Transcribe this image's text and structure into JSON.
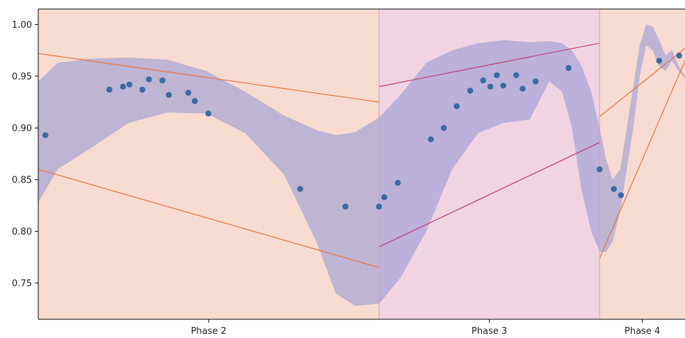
{
  "chart_data": {
    "type": "scatter",
    "title": "",
    "xlabel": "",
    "ylabel": "",
    "ylim": [
      0.715,
      1.015
    ],
    "xlim": [
      0,
      100
    ],
    "y_ticks": [
      0.75,
      0.8,
      0.85,
      0.9,
      0.95,
      1.0
    ],
    "y_tick_labels": [
      "0.75",
      "0.80",
      "0.85",
      "0.90",
      "0.95",
      "1.00"
    ],
    "grid": false,
    "legend": "none",
    "phases": [
      {
        "label": "Phase 2",
        "x_start": 0,
        "x_end": 52.7,
        "color": "#f7dbd1"
      },
      {
        "label": "Phase 3",
        "x_start": 52.7,
        "x_end": 86.8,
        "color": "#f0d4e2"
      },
      {
        "label": "Phase 4",
        "x_start": 86.8,
        "x_end": 100,
        "color": "#f7dbd1"
      }
    ],
    "band": {
      "color": "#8f93d6",
      "x": [
        0,
        3,
        8,
        14,
        20,
        26,
        32,
        38,
        43,
        46,
        49,
        52.7,
        56,
        60,
        64,
        68,
        72,
        76,
        79,
        81,
        82.5,
        84,
        85.5,
        86.8,
        87.8,
        88.8,
        90,
        91,
        92,
        93,
        94,
        95,
        96,
        97,
        98,
        99,
        100
      ],
      "upper": [
        0.945,
        0.963,
        0.967,
        0.968,
        0.966,
        0.955,
        0.935,
        0.912,
        0.898,
        0.893,
        0.896,
        0.91,
        0.932,
        0.963,
        0.975,
        0.982,
        0.985,
        0.983,
        0.984,
        0.982,
        0.975,
        0.96,
        0.935,
        0.9,
        0.87,
        0.85,
        0.86,
        0.9,
        0.94,
        0.98,
        1.0,
        0.998,
        0.985,
        0.97,
        0.975,
        0.96,
        0.95
      ],
      "lower": [
        0.828,
        0.86,
        0.88,
        0.905,
        0.915,
        0.914,
        0.895,
        0.855,
        0.79,
        0.74,
        0.728,
        0.73,
        0.755,
        0.8,
        0.86,
        0.895,
        0.905,
        0.908,
        0.945,
        0.935,
        0.9,
        0.84,
        0.8,
        0.78,
        0.78,
        0.79,
        0.82,
        0.86,
        0.9,
        0.95,
        0.98,
        0.975,
        0.96,
        0.955,
        0.965,
        0.955,
        0.948
      ]
    },
    "trend_lines": [
      {
        "phase": "Phase 2",
        "color": "#e8733a",
        "x": [
          0,
          52.7
        ],
        "y": [
          0.972,
          0.925
        ]
      },
      {
        "phase": "Phase 2",
        "color": "#e8733a",
        "x": [
          0,
          52.7
        ],
        "y": [
          0.86,
          0.765
        ]
      },
      {
        "phase": "Phase 3",
        "color": "#c03e75",
        "x": [
          52.7,
          86.8
        ],
        "y": [
          0.94,
          0.982
        ]
      },
      {
        "phase": "Phase 3",
        "color": "#c03e75",
        "x": [
          52.7,
          86.8
        ],
        "y": [
          0.785,
          0.886
        ]
      },
      {
        "phase": "Phase 4",
        "color": "#e8733a",
        "x": [
          86.8,
          100
        ],
        "y": [
          0.911,
          0.977
        ]
      },
      {
        "phase": "Phase 4",
        "color": "#e8733a",
        "x": [
          86.8,
          100
        ],
        "y": [
          0.774,
          0.965
        ]
      }
    ],
    "points_color": "#3c6aa1",
    "x": [
      1.1,
      11.0,
      13.1,
      14.1,
      16.1,
      17.1,
      19.2,
      20.2,
      23.2,
      24.2,
      26.3,
      40.5,
      47.5,
      52.7,
      53.5,
      55.6,
      60.7,
      62.7,
      64.7,
      66.8,
      68.8,
      69.9,
      70.9,
      71.9,
      73.9,
      74.9,
      76.9,
      82.0,
      86.8,
      89.0,
      90.1,
      96.0,
      99.1
    ],
    "y": [
      0.893,
      0.937,
      0.94,
      0.942,
      0.937,
      0.947,
      0.946,
      0.932,
      0.934,
      0.926,
      0.914,
      0.841,
      0.824,
      0.824,
      0.833,
      0.847,
      0.889,
      0.9,
      0.921,
      0.936,
      0.946,
      0.94,
      0.951,
      0.941,
      0.951,
      0.938,
      0.945,
      0.958,
      0.86,
      0.841,
      0.835,
      0.965,
      0.97
    ]
  }
}
